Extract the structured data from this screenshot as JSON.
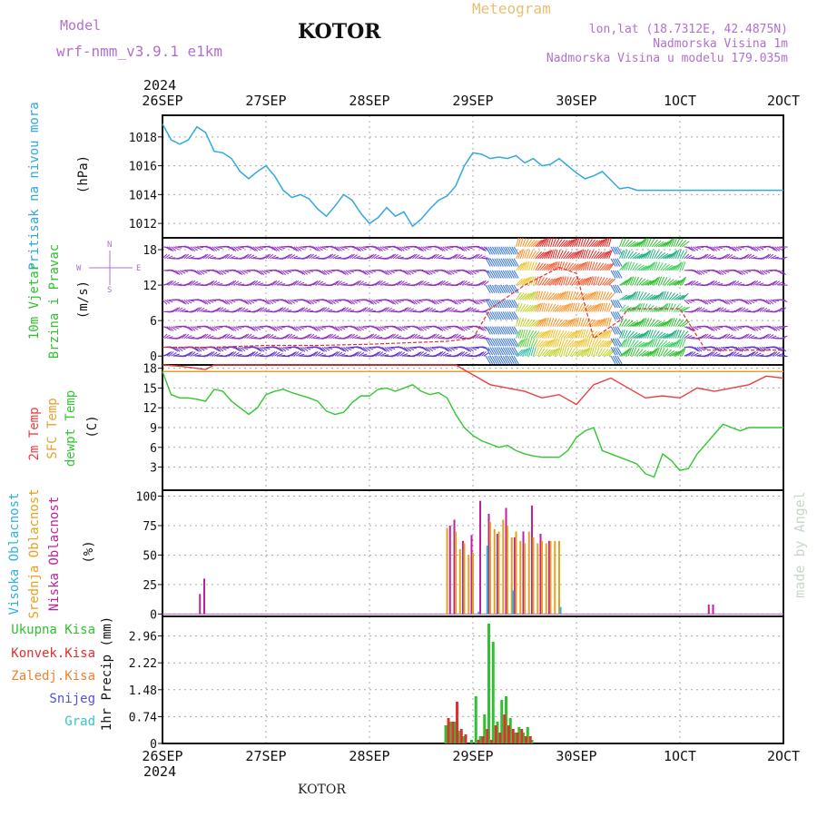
{
  "header": {
    "title": "KOTOR",
    "model_label": "Model",
    "model_name": "wrf-nmm_v3.9.1 e1km",
    "meteogram": "Meteogram",
    "lonlat": "lon,lat (18.7312E, 42.4875N)",
    "elevation": "Nadmorska Visina 1m",
    "model_elevation": "Nadmorska Visina u modelu 179.035m",
    "footer_title": "KOTOR",
    "credit": "made by Angel"
  },
  "colors": {
    "title_purple": "#b070d0",
    "meteogram_orange": "#e8c070",
    "pressure": "#30a8e0",
    "temp2m": "#e84040",
    "sfc_temp": "#e8a030",
    "dewpoint": "#30c830",
    "wind_purple": "#9030c0",
    "cloud_high": "#30b0e0",
    "cloud_mid": "#e8a020",
    "cloud_low": "#c020a0",
    "precip_total": "#30c030",
    "precip_conv": "#e03030",
    "precip_frozen": "#f08030",
    "snow": "#5050e0",
    "graupel": "#30c8c0"
  },
  "time_axis": {
    "year": "2024",
    "ticks": [
      "26SEP",
      "27SEP",
      "28SEP",
      "29SEP",
      "30SEP",
      "1OCT",
      "2OCT"
    ]
  },
  "panels": {
    "pressure": {
      "ylabel": "Pritisak na nivou mora",
      "unit": "(hPa)"
    },
    "wind": {
      "ylabel_a": "10m Vjetar",
      "ylabel_b": "Brzina i Pravac",
      "unit": "(m/s)",
      "compass_n": "N",
      "compass_s": "S",
      "compass_w": "W",
      "compass_e": "E"
    },
    "temperature": {
      "ylabel_a": "2m Temp",
      "ylabel_b": "SFC Temp",
      "ylabel_c": "dewpt Temp",
      "unit": "(C)"
    },
    "cloud": {
      "ylabel_a": "Visoka Oblacnost",
      "ylabel_b": "Srednja Oblacnost",
      "ylabel_c": "Niska Oblacnost",
      "unit": "(%)"
    },
    "precip": {
      "ylabel": "1hr Precip (mm)",
      "legend": [
        "Ukupna Kisa",
        "Konvek.Kisa",
        "Zaledj.Kisa",
        "Snijeg",
        "Grad"
      ]
    }
  },
  "chart_data": [
    {
      "type": "line",
      "name": "pressure",
      "xlim": [
        0,
        144
      ],
      "ylim": [
        1011,
        1019.5
      ],
      "yticks": [
        1012,
        1014,
        1016,
        1018
      ],
      "x": [
        0,
        2,
        4,
        6,
        8,
        10,
        12,
        14,
        16,
        18,
        20,
        22,
        24,
        26,
        28,
        30,
        32,
        34,
        36,
        38,
        40,
        42,
        44,
        46,
        48,
        50,
        52,
        54,
        56,
        58,
        60,
        62,
        64,
        66,
        68,
        70,
        72,
        74,
        76,
        78,
        80,
        82,
        84,
        86,
        88,
        90,
        92,
        94,
        96,
        98,
        100,
        102,
        104,
        106,
        108,
        110,
        112,
        114,
        116,
        118,
        120,
        122,
        124,
        126,
        128,
        130,
        132,
        134,
        136,
        138,
        140,
        142,
        144
      ],
      "y": [
        1018.9,
        1017.8,
        1017.5,
        1017.8,
        1018.7,
        1018.3,
        1017.0,
        1016.9,
        1016.5,
        1015.6,
        1015.1,
        1015.6,
        1016.0,
        1015.3,
        1014.3,
        1013.8,
        1014.0,
        1013.7,
        1013.0,
        1012.5,
        1013.2,
        1014.0,
        1013.6,
        1012.7,
        1012.0,
        1012.4,
        1013.1,
        1012.5,
        1012.8,
        1011.8,
        1012.3,
        1013.0,
        1013.6,
        1013.9,
        1014.6,
        1016.0,
        1016.9,
        1016.8,
        1016.5,
        1016.6,
        1016.5,
        1016.7,
        1016.2,
        1016.5,
        1016.0,
        1016.1,
        1016.5,
        1016.0,
        1015.5,
        1015.1,
        1015.3,
        1015.6,
        1015.0,
        1014.4,
        1014.5,
        1014.3,
        1014.3,
        1014.3,
        1014.3,
        1014.3,
        1014.3,
        1014.3,
        1014.3,
        1014.3,
        1014.3,
        1014.3,
        1014.3,
        1014.3,
        1014.3,
        1014.3,
        1014.3,
        1014.3,
        1014.3
      ]
    },
    {
      "type": "line",
      "name": "wind_speed",
      "xlim": [
        0,
        144
      ],
      "ylim": [
        -1.5,
        20
      ],
      "yticks": [
        0,
        6,
        12,
        18
      ],
      "x": [
        0,
        12,
        24,
        36,
        48,
        66,
        72,
        76,
        84,
        92,
        96,
        100,
        106,
        108,
        120,
        126,
        132,
        144
      ],
      "y": [
        1.5,
        1.5,
        1.8,
        1.8,
        2,
        2.5,
        3,
        8,
        12,
        15,
        14,
        3,
        6,
        8,
        8,
        1,
        1,
        1
      ],
      "dir_bands": [
        {
          "from": 0,
          "to": 75,
          "label": "purple"
        },
        {
          "from": 75,
          "to": 82,
          "label": "blue"
        },
        {
          "from": 82,
          "to": 104,
          "label": "rainbow"
        },
        {
          "from": 104,
          "to": 106,
          "label": "blue"
        },
        {
          "from": 106,
          "to": 121,
          "label": "green"
        },
        {
          "from": 121,
          "to": 144,
          "label": "purple"
        }
      ]
    },
    {
      "type": "line",
      "name": "temperature",
      "xlim": [
        0,
        144
      ],
      "ylim": [
        -0.5,
        18.5
      ],
      "yticks": [
        3,
        6,
        9,
        12,
        15,
        18
      ],
      "sfc_temp": 17.5,
      "series": [
        {
          "name": "2m Temp",
          "x": [
            0,
            4,
            8,
            10,
            12,
            16,
            20,
            24,
            28,
            32,
            36,
            40,
            44,
            48,
            52,
            56,
            60,
            64,
            68,
            72,
            76,
            80,
            84,
            88,
            92,
            96,
            100,
            104,
            108,
            112,
            116,
            120,
            124,
            128,
            132,
            136,
            140,
            144
          ],
          "y": [
            18.5,
            18.3,
            18.0,
            17.8,
            18.5,
            18.6,
            18.7,
            18.7,
            18.7,
            18.7,
            18.8,
            18.8,
            18.8,
            18.8,
            18.7,
            18.5,
            18.7,
            18.8,
            18.5,
            17.0,
            15.5,
            15.0,
            14.5,
            13.5,
            14.0,
            12.5,
            15.5,
            16.5,
            15.0,
            13.5,
            13.8,
            13.5,
            15.0,
            14.5,
            15.0,
            15.5,
            16.8,
            16.5
          ]
        },
        {
          "name": "dewpt Temp",
          "x": [
            0,
            2,
            4,
            6,
            8,
            10,
            12,
            14,
            16,
            18,
            20,
            22,
            24,
            26,
            28,
            30,
            32,
            34,
            36,
            38,
            40,
            42,
            44,
            46,
            48,
            50,
            52,
            54,
            56,
            58,
            60,
            62,
            64,
            66,
            68,
            70,
            72,
            74,
            76,
            78,
            80,
            82,
            84,
            86,
            88,
            90,
            92,
            94,
            96,
            98,
            100,
            102,
            104,
            106,
            108,
            110,
            112,
            114,
            116,
            118,
            120,
            122,
            124,
            126,
            128,
            130,
            132,
            134,
            136,
            138,
            140,
            142,
            144
          ],
          "y": [
            17.5,
            14.0,
            13.5,
            13.5,
            13.3,
            13.0,
            14.8,
            14.5,
            13.0,
            12.0,
            11.0,
            12.0,
            14.0,
            14.5,
            14.8,
            14.3,
            13.9,
            13.5,
            13.0,
            11.5,
            11.0,
            11.3,
            12.8,
            13.8,
            13.8,
            14.8,
            15.0,
            14.5,
            15.0,
            15.5,
            14.5,
            14.0,
            14.3,
            13.5,
            11.0,
            9.0,
            7.8,
            7.0,
            6.5,
            6.0,
            6.3,
            5.5,
            5.0,
            4.7,
            4.5,
            4.5,
            4.5,
            5.5,
            7.5,
            8.5,
            9.0,
            5.5,
            5.0,
            4.5,
            4.0,
            3.5,
            2.0,
            1.5,
            5.0,
            4.0,
            2.5,
            2.8,
            5.0,
            6.5,
            8.0,
            9.5,
            9.0,
            8.5,
            9.0,
            9.0,
            9.0,
            9.0,
            9.0
          ]
        }
      ]
    },
    {
      "type": "bar",
      "name": "cloud_cover",
      "xlim": [
        0,
        144
      ],
      "ylim": [
        -2,
        105
      ],
      "yticks": [
        0,
        25,
        50,
        75,
        100
      ],
      "series": [
        {
          "name": "Niska Oblacnost",
          "x": [
            9,
            10,
            67,
            68,
            70,
            72,
            74,
            76,
            78,
            80,
            82,
            84,
            86,
            88,
            90,
            127,
            128
          ],
          "values": [
            17,
            30,
            75,
            80,
            62,
            67,
            96,
            85,
            68,
            90,
            65,
            70,
            92,
            68,
            62,
            8,
            8
          ]
        },
        {
          "name": "Srednja Oblacnost",
          "x": [
            66,
            68,
            69,
            70,
            71,
            72,
            76,
            77,
            78,
            79,
            80,
            81,
            82,
            83,
            84,
            85,
            86,
            87,
            88,
            89,
            90,
            91,
            92
          ],
          "values": [
            73,
            70,
            55,
            60,
            50,
            52,
            78,
            72,
            70,
            80,
            75,
            65,
            70,
            62,
            60,
            70,
            65,
            60,
            62,
            60,
            62,
            62,
            62
          ]
        },
        {
          "name": "Visoka Oblacnost",
          "x": [
            73,
            75,
            81,
            92
          ],
          "values": [
            2,
            58,
            20,
            6
          ]
        }
      ]
    },
    {
      "type": "bar",
      "name": "precip_1hr",
      "xlim": [
        0,
        144
      ],
      "ylim": [
        0,
        3.5
      ],
      "yticks": [
        0,
        0.74,
        1.48,
        2.22,
        2.96
      ],
      "series": [
        {
          "name": "Ukupna Kisa",
          "x": [
            66,
            67,
            68,
            69,
            70,
            72,
            73,
            74,
            75,
            76,
            77,
            78,
            79,
            80,
            81,
            82,
            83,
            84,
            85,
            86
          ],
          "values": [
            0.5,
            0.6,
            0.6,
            0.35,
            0.2,
            0.1,
            1.3,
            0.2,
            0.8,
            3.3,
            2.8,
            0.6,
            1.2,
            1.3,
            0.7,
            0.3,
            0.45,
            0.3,
            0.45,
            0.1
          ]
        },
        {
          "name": "Konvek.Kisa",
          "x": [
            66,
            67,
            68,
            69,
            70,
            73,
            74,
            75,
            76,
            77,
            78,
            79,
            80,
            81,
            82,
            83,
            84,
            85
          ],
          "values": [
            0.7,
            0.6,
            1.15,
            0.4,
            0.25,
            0.1,
            0.2,
            0.4,
            0.1,
            0.5,
            0.3,
            0.8,
            0.5,
            0.4,
            0.3,
            0.4,
            0.2,
            0.2
          ]
        }
      ]
    }
  ]
}
